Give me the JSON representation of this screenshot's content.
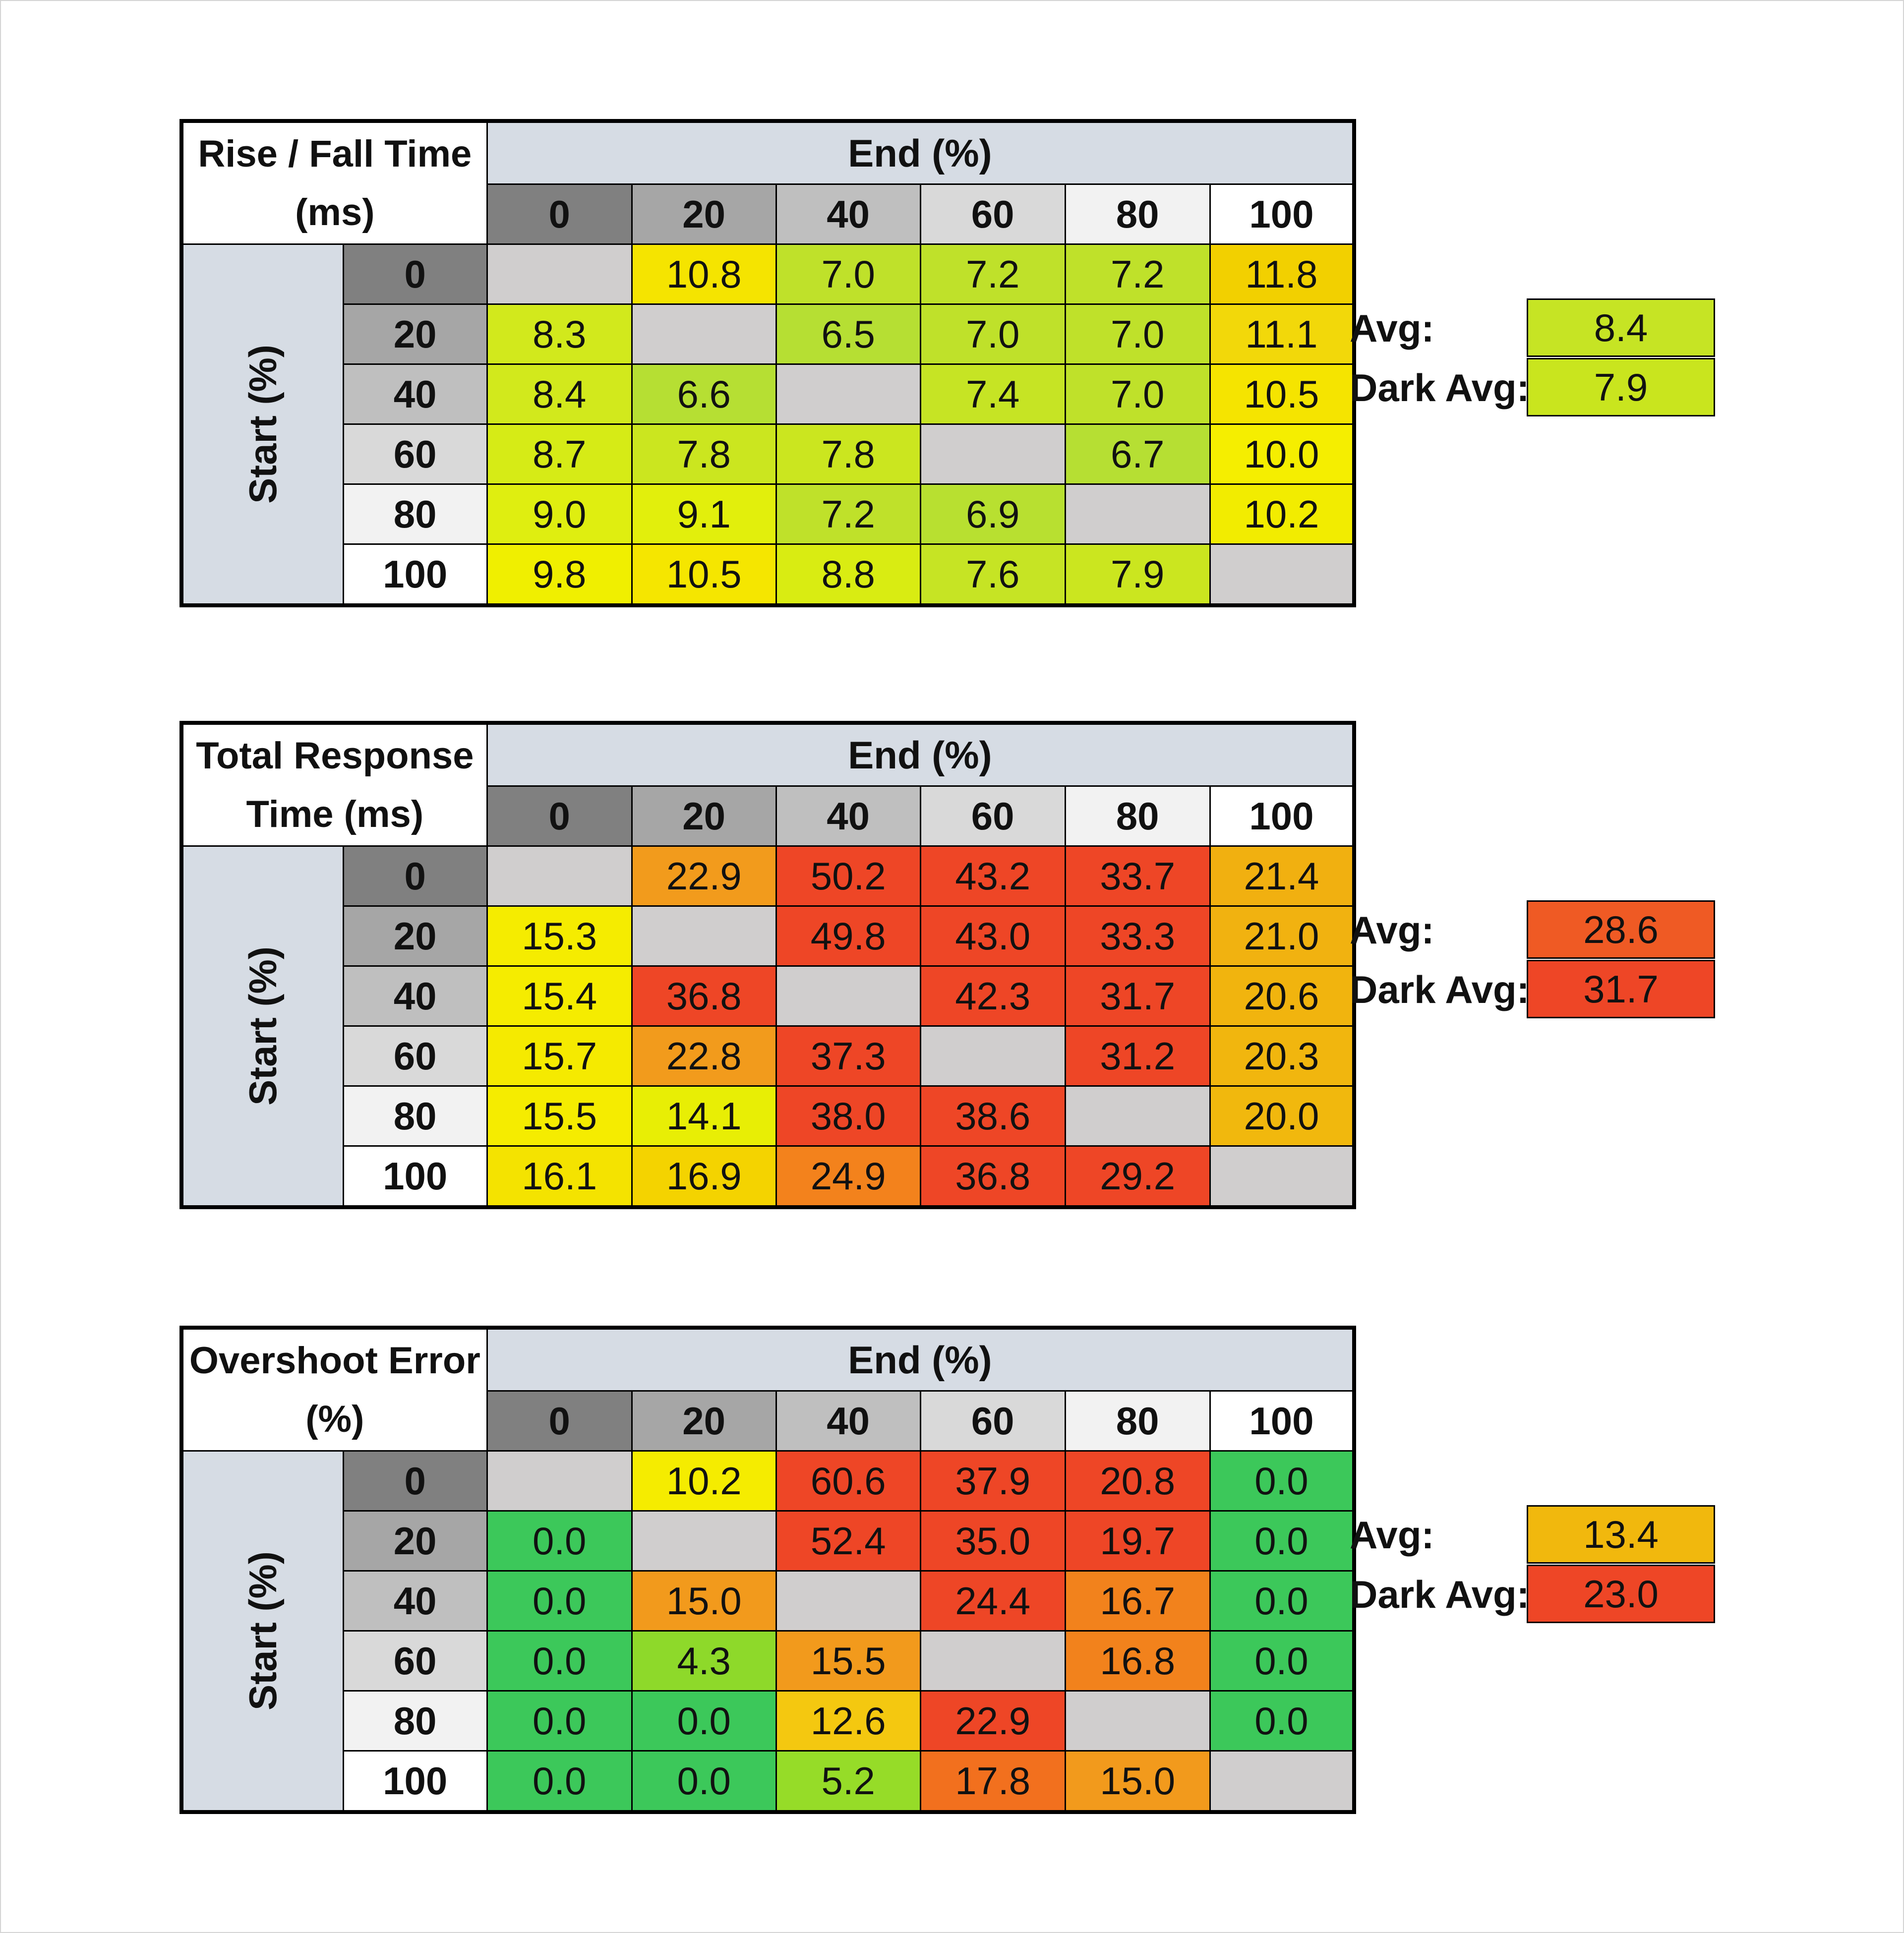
{
  "chart_data": [
    {
      "type": "heatmap",
      "title": "Rise / Fall Time (ms)",
      "x_label": "End (%)",
      "y_label": "Start (%)",
      "levels": [
        "0",
        "20",
        "40",
        "60",
        "80",
        "100"
      ],
      "cells": [
        [
          "",
          "10.8",
          "7.0",
          "7.2",
          "7.2",
          "11.8"
        ],
        [
          "8.3",
          "",
          "6.5",
          "7.0",
          "7.0",
          "11.1"
        ],
        [
          "8.4",
          "6.6",
          "",
          "7.4",
          "7.0",
          "10.5"
        ],
        [
          "8.7",
          "7.8",
          "7.8",
          "",
          "6.7",
          "10.0"
        ],
        [
          "9.0",
          "9.1",
          "7.2",
          "6.9",
          "",
          "10.2"
        ],
        [
          "9.8",
          "10.5",
          "8.8",
          "7.6",
          "7.9",
          ""
        ]
      ],
      "colors": [
        [
          "#d0cece",
          "#f5e400",
          "#bfe12a",
          "#bfe12a",
          "#bfe12a",
          "#f2d000"
        ],
        [
          "#d2e91c",
          "#d0cece",
          "#b6df33",
          "#bfe12a",
          "#bfe12a",
          "#f2d80a"
        ],
        [
          "#d2e91c",
          "#b6df33",
          "#d0cece",
          "#c6e424",
          "#bfe12a",
          "#f5e400"
        ],
        [
          "#d6eb16",
          "#cbe61f",
          "#cbe61f",
          "#d0cece",
          "#b6df33",
          "#f5ee00"
        ],
        [
          "#dfee10",
          "#e2ef0c",
          "#bfe12a",
          "#b8e030",
          "#d0cece",
          "#f2ec00"
        ],
        [
          "#f0ef00",
          "#f5e600",
          "#d9ec12",
          "#c6e424",
          "#cbe61f",
          "#d0cece"
        ]
      ],
      "avg_label": "Avg:",
      "avg_value": "8.4",
      "avg_color": "#c6e424",
      "dark_avg_label": "Dark Avg:",
      "dark_avg_value": "7.9",
      "dark_avg_color": "#c9e51e"
    },
    {
      "type": "heatmap",
      "title": "Total Response Time (ms)",
      "x_label": "End (%)",
      "y_label": "Start (%)",
      "levels": [
        "0",
        "20",
        "40",
        "60",
        "80",
        "100"
      ],
      "cells": [
        [
          "",
          "22.9",
          "50.2",
          "43.2",
          "33.7",
          "21.4"
        ],
        [
          "15.3",
          "",
          "49.8",
          "43.0",
          "33.3",
          "21.0"
        ],
        [
          "15.4",
          "36.8",
          "",
          "42.3",
          "31.7",
          "20.6"
        ],
        [
          "15.7",
          "22.8",
          "37.3",
          "",
          "31.2",
          "20.3"
        ],
        [
          "15.5",
          "14.1",
          "38.0",
          "38.6",
          "",
          "20.0"
        ],
        [
          "16.1",
          "16.9",
          "24.9",
          "36.8",
          "29.2",
          ""
        ]
      ],
      "colors": [
        [
          "#d0cece",
          "#f29b1c",
          "#ee4626",
          "#ee4626",
          "#ee4626",
          "#f1b010"
        ],
        [
          "#f5ec00",
          "#d0cece",
          "#ee4626",
          "#ee4626",
          "#ee4626",
          "#f1b210"
        ],
        [
          "#f5ec00",
          "#ee4626",
          "#d0cece",
          "#ee4626",
          "#ee4626",
          "#f1b40e"
        ],
        [
          "#f5ea00",
          "#f29b1c",
          "#ee4626",
          "#d0cece",
          "#ee4626",
          "#f1b60e"
        ],
        [
          "#f5ec00",
          "#e8ee05",
          "#ee4626",
          "#ee4626",
          "#d0cece",
          "#f1b80d"
        ],
        [
          "#f4e300",
          "#f4d300",
          "#f3821c",
          "#ee4626",
          "#ee4626",
          "#d0cece"
        ]
      ],
      "avg_label": "Avg:",
      "avg_value": "28.6",
      "avg_color": "#ef5a24",
      "dark_avg_label": "Dark Avg:",
      "dark_avg_value": "31.7",
      "dark_avg_color": "#ee4626"
    },
    {
      "type": "heatmap",
      "title": "Overshoot Error (%)",
      "x_label": "End (%)",
      "y_label": "Start (%)",
      "levels": [
        "0",
        "20",
        "40",
        "60",
        "80",
        "100"
      ],
      "cells": [
        [
          "",
          "10.2",
          "60.6",
          "37.9",
          "20.8",
          "0.0"
        ],
        [
          "0.0",
          "",
          "52.4",
          "35.0",
          "19.7",
          "0.0"
        ],
        [
          "0.0",
          "15.0",
          "",
          "24.4",
          "16.7",
          "0.0"
        ],
        [
          "0.0",
          "4.3",
          "15.5",
          "",
          "16.8",
          "0.0"
        ],
        [
          "0.0",
          "0.0",
          "12.6",
          "22.9",
          "",
          "0.0"
        ],
        [
          "0.0",
          "0.0",
          "5.2",
          "17.8",
          "15.0",
          ""
        ]
      ],
      "colors": [
        [
          "#d0cece",
          "#f5ec00",
          "#ee4626",
          "#ee4626",
          "#ee4626",
          "#3cc85a"
        ],
        [
          "#3cc85a",
          "#d0cece",
          "#ee4626",
          "#ee4626",
          "#ee4626",
          "#3cc85a"
        ],
        [
          "#3cc85a",
          "#f29a1c",
          "#d0cece",
          "#ee4626",
          "#f2821c",
          "#3cc85a"
        ],
        [
          "#3cc85a",
          "#8ed92a",
          "#f29a1c",
          "#d0cece",
          "#f2821c",
          "#3cc85a"
        ],
        [
          "#3cc85a",
          "#3cc85a",
          "#f4c810",
          "#ee4626",
          "#d0cece",
          "#3cc85a"
        ],
        [
          "#3cc85a",
          "#3cc85a",
          "#96dc28",
          "#f2701e",
          "#f29a1c",
          "#d0cece"
        ]
      ],
      "avg_label": "Avg:",
      "avg_value": "13.4",
      "avg_color": "#f1b80d",
      "dark_avg_label": "Dark Avg:",
      "dark_avg_value": "23.0",
      "dark_avg_color": "#ee4626"
    }
  ],
  "header_colors": [
    "#808080",
    "#a6a6a6",
    "#bfbfbf",
    "#d9d9d9",
    "#f2f2f2",
    "#ffffff"
  ]
}
